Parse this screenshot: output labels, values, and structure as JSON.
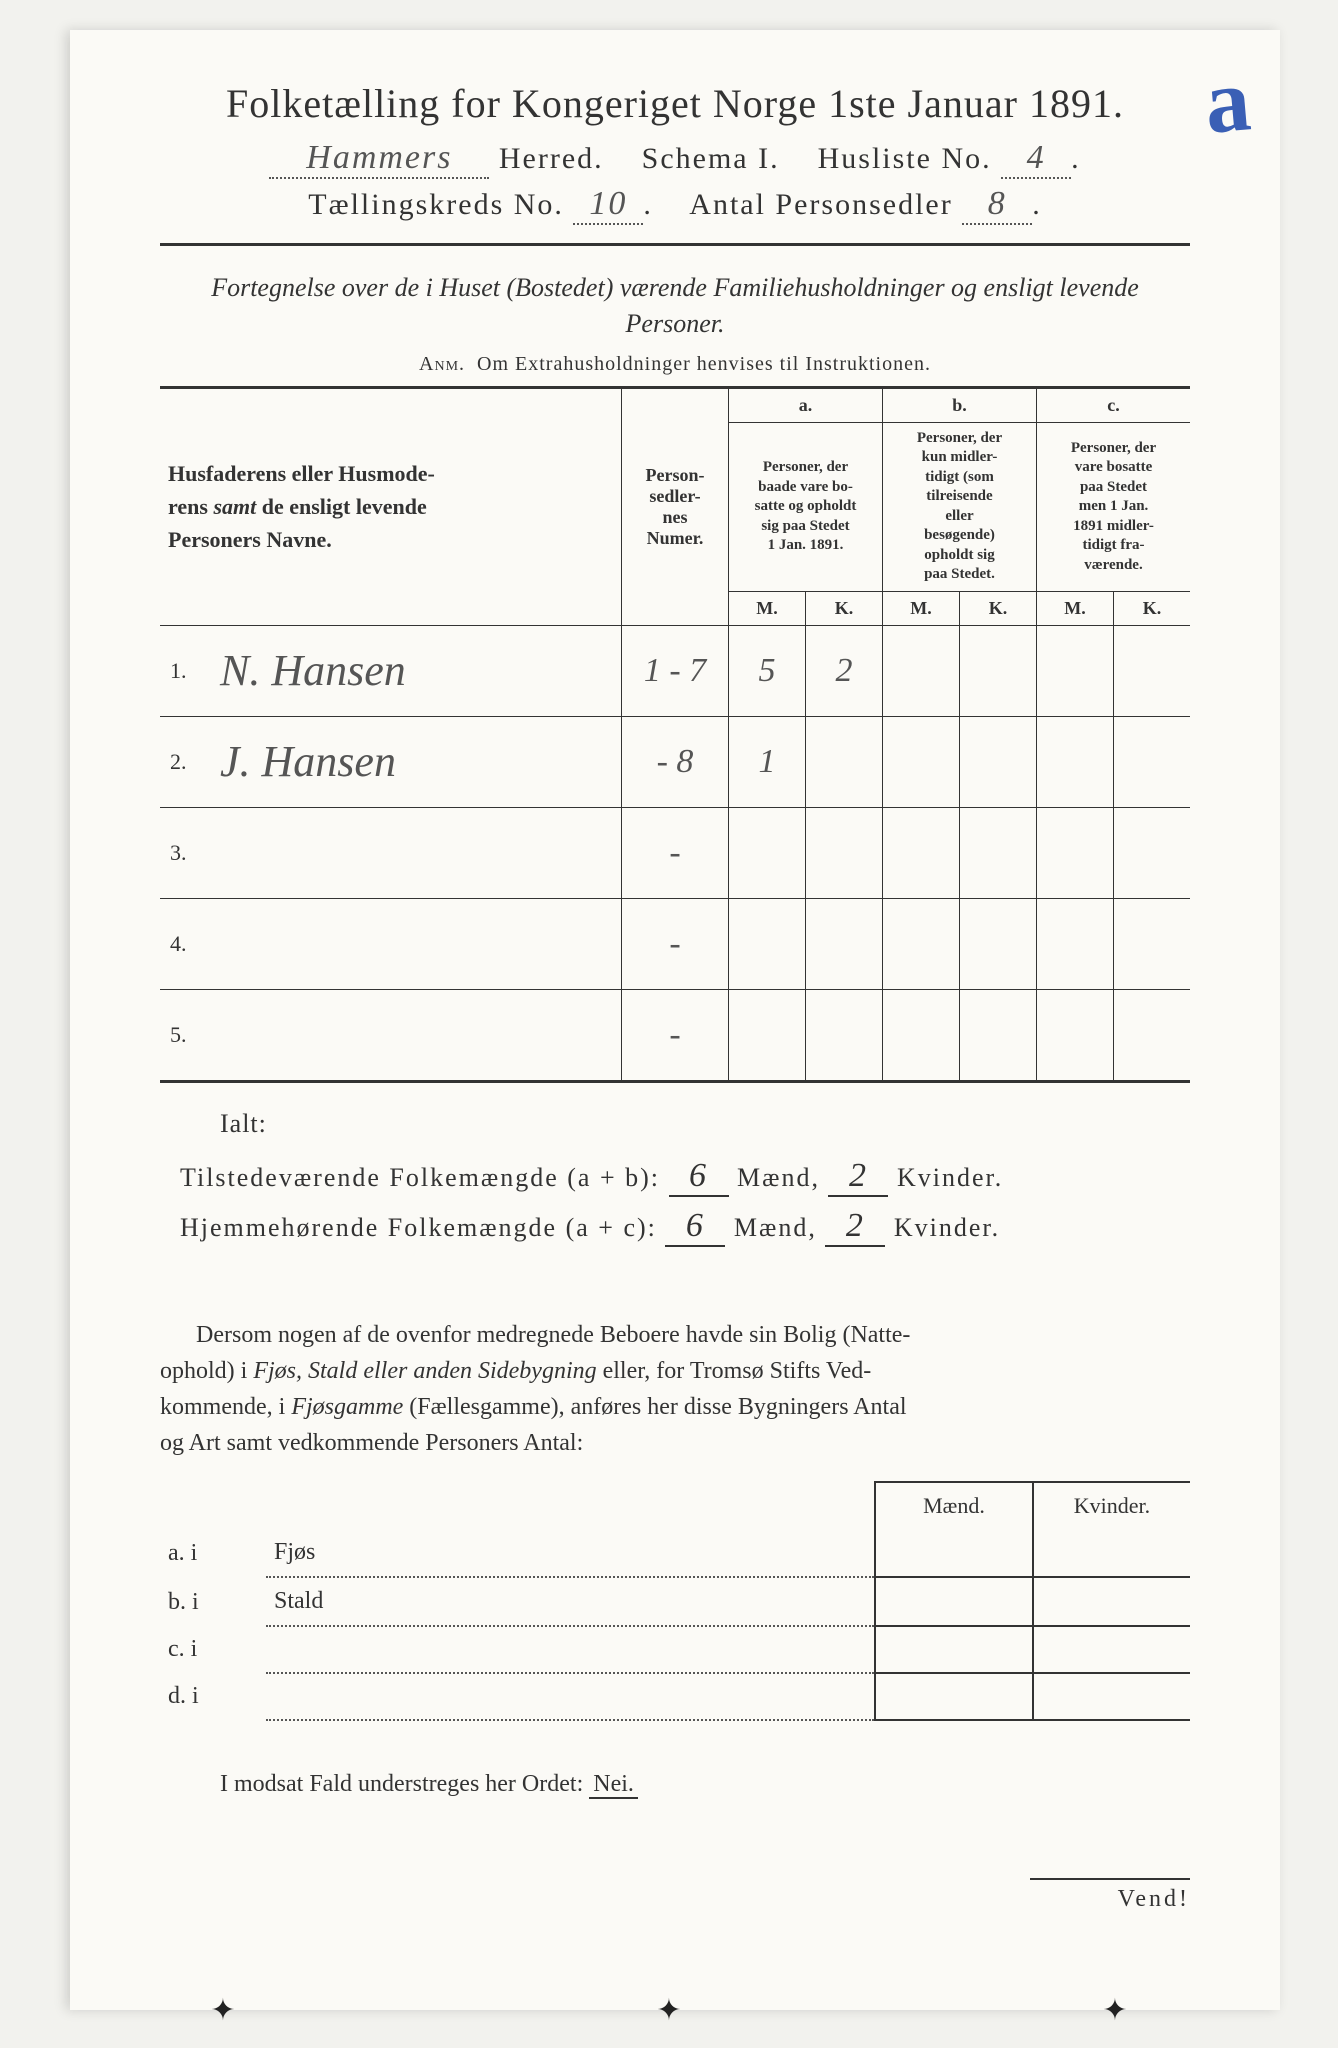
{
  "corner_mark": "a",
  "header": {
    "title": "Folketælling for Kongeriget Norge 1ste Januar 1891.",
    "herred_value": "Hammers",
    "herred_label": "Herred.",
    "schema_label": "Schema I.",
    "husliste_label": "Husliste No.",
    "husliste_value": "4",
    "kreds_label": "Tællingskreds No.",
    "kreds_value": "10",
    "antal_label": "Antal Personsedler",
    "antal_value": "8"
  },
  "subtitle": "Fortegnelse over de i Huset (Bostedet) værende Familiehusholdninger og ensligt levende Personer.",
  "anm": "Anm.  Om Extrahusholdninger henvises til Instruktionen.",
  "table": {
    "col_names": "Husfaderens eller Husmoderens samt de ensligt levende Personers Navne.",
    "col_numer": "Person-sedler-nes Numer.",
    "col_a_label": "a.",
    "col_a_text": "Personer, der baade vare bosatte og opholdt sig paa Stedet 1 Jan. 1891.",
    "col_b_label": "b.",
    "col_b_text": "Personer, der kun midlertidigt (som tilreisende eller besøgende) opholdt sig paa Stedet.",
    "col_c_label": "c.",
    "col_c_text": "Personer, der vare bosatte paa Stedet men 1 Jan. 1891 midlertidigt fraværende.",
    "m": "M.",
    "k": "K.",
    "rows": [
      {
        "n": "1.",
        "name": "N. Hansen",
        "numer": "1 - 7",
        "aM": "5",
        "aK": "2",
        "bM": "",
        "bK": "",
        "cM": "",
        "cK": ""
      },
      {
        "n": "2.",
        "name": "J. Hansen",
        "numer": "- 8",
        "aM": "1",
        "aK": "",
        "bM": "",
        "bK": "",
        "cM": "",
        "cK": ""
      },
      {
        "n": "3.",
        "name": "",
        "numer": "-",
        "aM": "",
        "aK": "",
        "bM": "",
        "bK": "",
        "cM": "",
        "cK": ""
      },
      {
        "n": "4.",
        "name": "",
        "numer": "-",
        "aM": "",
        "aK": "",
        "bM": "",
        "bK": "",
        "cM": "",
        "cK": ""
      },
      {
        "n": "5.",
        "name": "",
        "numer": "-",
        "aM": "",
        "aK": "",
        "bM": "",
        "bK": "",
        "cM": "",
        "cK": ""
      }
    ]
  },
  "ialt": "Ialt:",
  "totals": {
    "line1_label": "Tilstedeværende Folkemængde (a + b):",
    "line1_m": "6",
    "line1_k": "2",
    "line2_label": "Hjemmehørende Folkemængde (a + c):",
    "line2_m": "6",
    "line2_k": "2",
    "maend": "Mænd,",
    "kvinder": "Kvinder."
  },
  "para": "Dersom nogen af de ovenfor medregnede Beboere havde sin Bolig (Natteophold) i Fjøs, Stald eller anden Sidebygning eller, for Tromsø Stifts Vedkommende, i Fjøsgamme (Fællesgamme), anføres her disse Bygningers Antal og Art samt vedkommende Personers Antal:",
  "lower": {
    "maend": "Mænd.",
    "kvinder": "Kvinder.",
    "rows": [
      {
        "label": "a.  i",
        "type": "Fjøs"
      },
      {
        "label": "b.  i",
        "type": "Stald"
      },
      {
        "label": "c.  i",
        "type": ""
      },
      {
        "label": "d.  i",
        "type": ""
      }
    ]
  },
  "nei_line": "I modsat Fald understreges her Ordet:",
  "nei": "Nei.",
  "vend": "Vend!"
}
